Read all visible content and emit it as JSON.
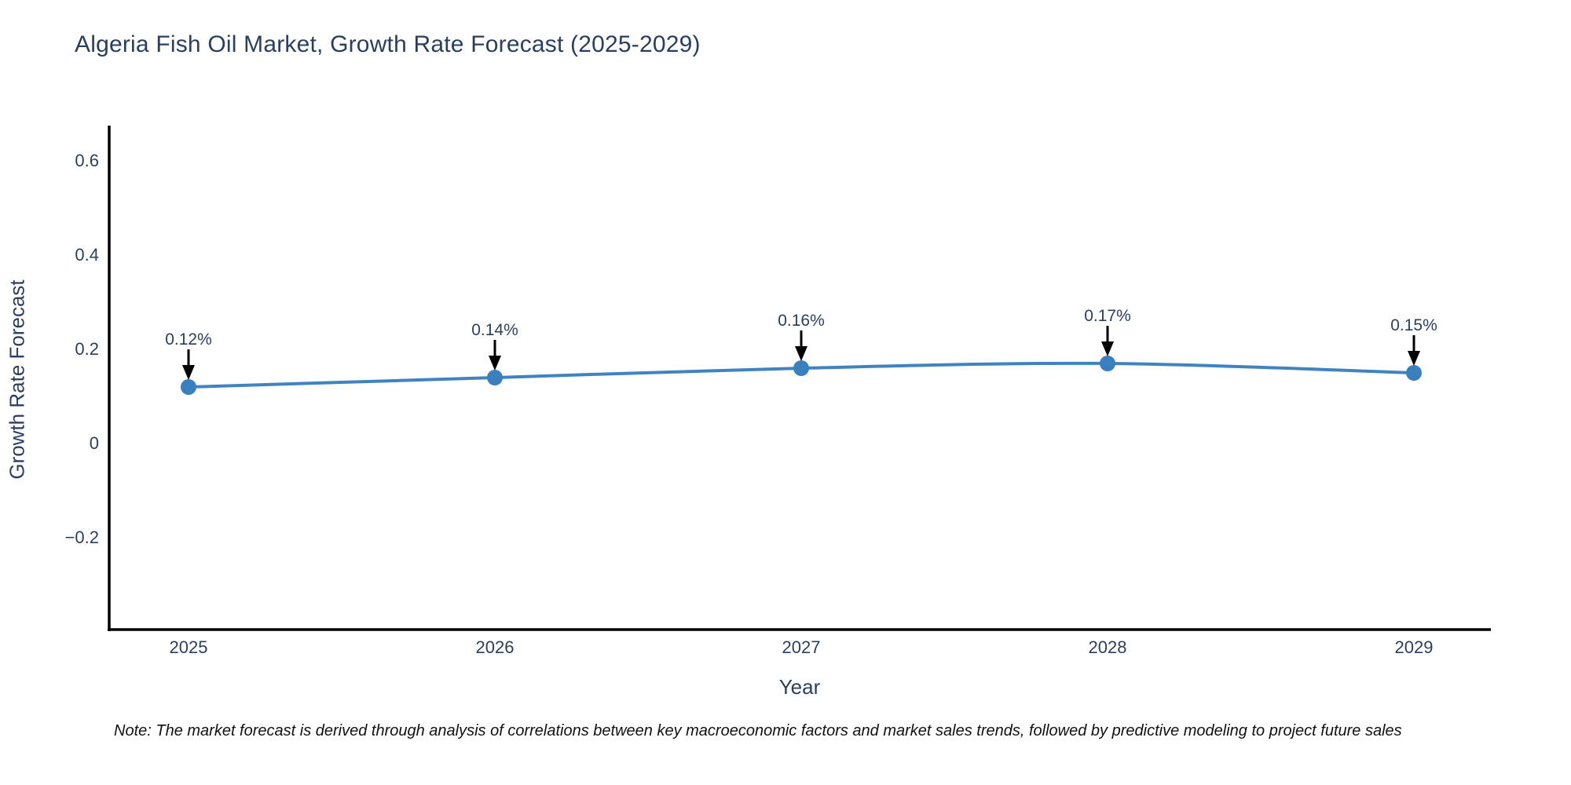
{
  "chart_data": {
    "type": "line",
    "title": "Algeria Fish Oil Market, Growth Rate Forecast (2025-2029)",
    "xlabel": "Year",
    "ylabel": "Growth Rate Forecast",
    "x": [
      2025,
      2026,
      2027,
      2028,
      2029
    ],
    "x_tick_labels": [
      "2025",
      "2026",
      "2027",
      "2028",
      "2029"
    ],
    "values": [
      0.12,
      0.14,
      0.16,
      0.17,
      0.15
    ],
    "point_labels": [
      "0.12%",
      "0.14%",
      "0.16%",
      "0.17%",
      "0.15%"
    ],
    "y_ticks": [
      0.6,
      0.4,
      0.2,
      0,
      -0.2
    ],
    "y_tick_labels": [
      "0.6",
      "0.4",
      "0.2",
      "0",
      "−0.2"
    ],
    "ylim": [
      -0.4,
      0.675
    ],
    "grid": false,
    "legend": false,
    "note": "Note: The market forecast is derived through analysis of correlations between key macroeconomic factors and market sales trends, followed by predictive modeling to project future sales",
    "colors": {
      "line": "#3f84c1",
      "marker": "#3a80be",
      "text": "#2a3f5f",
      "axis_line": "#000000",
      "annotation_arrow": "#000000",
      "note_text": "#111111",
      "background": "#ffffff"
    }
  }
}
